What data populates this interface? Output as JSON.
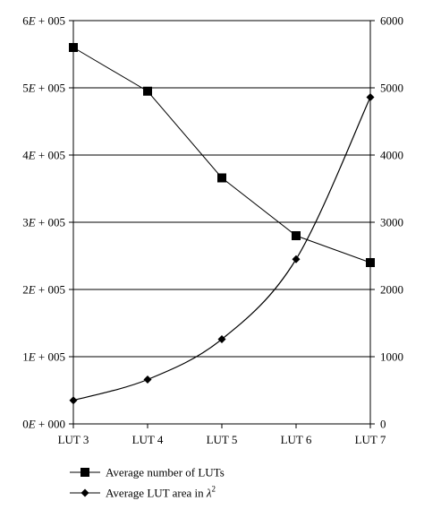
{
  "chart_data": {
    "type": "line",
    "categories": [
      "LUT 3",
      "LUT 4",
      "LUT 5",
      "LUT 6",
      "LUT 7"
    ],
    "series": [
      {
        "name": "Average number of LUTs",
        "axis": "left",
        "marker": "square",
        "values": [
          560000,
          495000,
          366000,
          280000,
          240000
        ]
      },
      {
        "name": "Average LUT area in λ",
        "name_superscript": "2",
        "axis": "right",
        "marker": "diamond",
        "values": [
          350,
          660,
          1260,
          2450,
          4860
        ]
      }
    ],
    "y_left": {
      "ylim": [
        0,
        600000
      ],
      "tick_values": [
        0,
        100000,
        200000,
        300000,
        400000,
        500000,
        600000
      ],
      "tick_labels": [
        {
          "mant": "0",
          "exp": "000"
        },
        {
          "mant": "1",
          "exp": "005"
        },
        {
          "mant": "2",
          "exp": "005"
        },
        {
          "mant": "3",
          "exp": "005"
        },
        {
          "mant": "4",
          "exp": "005"
        },
        {
          "mant": "5",
          "exp": "005"
        },
        {
          "mant": "6",
          "exp": "005"
        }
      ]
    },
    "y_right": {
      "ylim": [
        0,
        6000
      ],
      "tick_labels": [
        "0",
        "1000",
        "2000",
        "3000",
        "4000",
        "5000",
        "6000"
      ]
    },
    "grid": true,
    "legend_position": "bottom-left",
    "title": "",
    "xlabel": "",
    "ylabel": ""
  }
}
